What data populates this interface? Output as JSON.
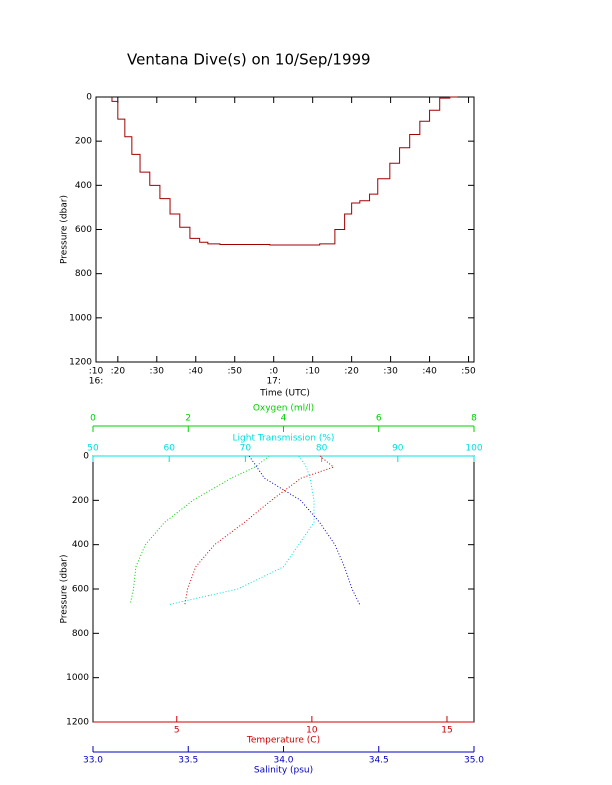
{
  "chart_data": [
    {
      "type": "line",
      "title": "Ventana Dive(s) on 10/Sep/1999",
      "xlabel": "Time (UTC)",
      "ylabel": "Pressure (dbar)",
      "color": "#a00000",
      "x": [
        18.5,
        20.0,
        21.8,
        23.6,
        25.7,
        28.2,
        30.8,
        33.4,
        35.9,
        38.5,
        41.0,
        43.1,
        46.2,
        51.3,
        59.0,
        66.7,
        71.8,
        75.7,
        78.2,
        80.0,
        82.1,
        84.6,
        86.7,
        89.8,
        92.3,
        94.9,
        97.5,
        100.0,
        102.6,
        105.2,
        107.2
      ],
      "values": [
        0,
        20,
        100,
        180,
        260,
        340,
        400,
        460,
        530,
        590,
        640,
        658,
        665,
        668,
        668,
        670,
        670,
        665,
        600,
        530,
        480,
        470,
        440,
        370,
        300,
        230,
        170,
        110,
        60,
        5,
        0
      ],
      "xlim": [
        14.4,
        111.4
      ],
      "xticks": [
        {
          "value": 14.4,
          "label": ":10"
        },
        {
          "value": 20,
          "label": ":20"
        },
        {
          "value": 30,
          "label": ":30"
        },
        {
          "value": 40,
          "label": ":40"
        },
        {
          "value": 50,
          "label": ":50"
        },
        {
          "value": 60,
          "label": ":0"
        },
        {
          "value": 70,
          "label": ":10"
        },
        {
          "value": 80,
          "label": ":20"
        },
        {
          "value": 90,
          "label": ":30"
        },
        {
          "value": 100,
          "label": ":40"
        },
        {
          "value": 110,
          "label": ":50"
        }
      ],
      "x_hour_labels": [
        {
          "value": 14.4,
          "label": "16:"
        },
        {
          "value": 60,
          "label": "17:"
        }
      ],
      "ylim": [
        1200,
        0
      ],
      "yticks": [
        0,
        200,
        400,
        600,
        800,
        1000,
        1200
      ]
    },
    {
      "type": "profile",
      "ylabel": "Pressure (dbar)",
      "ylim": [
        1200,
        0
      ],
      "yticks": [
        0,
        200,
        400,
        600,
        800,
        1000,
        1200
      ],
      "pressure": [
        0,
        50,
        100,
        200,
        300,
        400,
        500,
        600,
        670
      ],
      "profiles": [
        {
          "label": "Oxygen (ml/l)",
          "color": "#00d000",
          "xlim": [
            0,
            8
          ],
          "xticks": [
            0,
            2,
            4,
            6,
            8
          ],
          "values": [
            3.7,
            3.4,
            2.9,
            2.1,
            1.5,
            1.1,
            0.9,
            0.85,
            0.78
          ]
        },
        {
          "label": "Light Transmission (%)",
          "color": "#00e0e0",
          "xlim": [
            50,
            100
          ],
          "xticks": [
            50,
            60,
            70,
            80,
            90,
            100
          ],
          "values": [
            77,
            78,
            78.5,
            79,
            79,
            77,
            75,
            69,
            60
          ]
        },
        {
          "label": "Temperature (C)",
          "color": "#d00000",
          "xlim": [
            1.9,
            16
          ],
          "xticks": [
            5,
            10,
            15
          ],
          "values": [
            10.3,
            10.8,
            9.6,
            8.5,
            7.5,
            6.4,
            5.7,
            5.4,
            5.3
          ]
        },
        {
          "label": "Salinity (psu)",
          "color": "#0000c0",
          "xlim": [
            33,
            35
          ],
          "xticks": [
            {
              "value": 33,
              "label": "33.0"
            },
            {
              "value": 33.5,
              "label": "33.5"
            },
            {
              "value": 34,
              "label": "34.0"
            },
            {
              "value": 34.5,
              "label": "34.5"
            },
            {
              "value": 35,
              "label": "35.0"
            }
          ],
          "values": [
            33.82,
            33.86,
            33.9,
            34.09,
            34.19,
            34.27,
            34.32,
            34.36,
            34.4
          ]
        }
      ]
    }
  ]
}
